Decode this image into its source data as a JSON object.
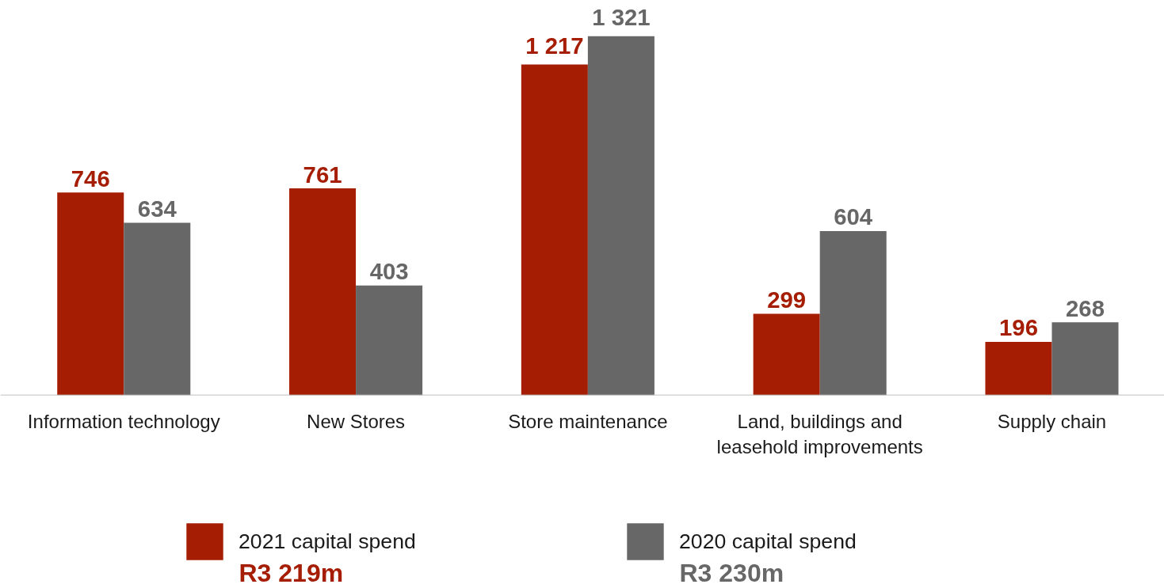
{
  "chart_data": {
    "type": "bar",
    "categories": [
      "Information technology",
      "New Stores",
      "Store maintenance",
      "Land, buildings and leasehold improvements",
      "Supply chain"
    ],
    "series": [
      {
        "name": "2021 capital spend",
        "color": "#a51d02",
        "values": [
          746,
          761,
          1217,
          299,
          196
        ],
        "value_labels": [
          "746",
          "761",
          "1 217",
          "299",
          "196"
        ]
      },
      {
        "name": "2020 capital spend",
        "color": "#676767",
        "values": [
          634,
          403,
          1321,
          604,
          268
        ],
        "value_labels": [
          "634",
          "403",
          "1 321",
          "604",
          "268"
        ]
      }
    ],
    "annotations": [
      "R3 219m",
      "R3 230m"
    ],
    "legend": "bottom",
    "grid": false,
    "tick_labels": "x"
  }
}
